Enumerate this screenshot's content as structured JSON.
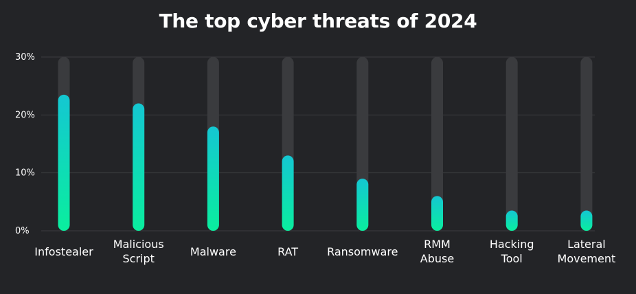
{
  "chart_data": {
    "type": "bar",
    "title": "The top cyber threats of 2024",
    "xlabel": "",
    "ylabel": "",
    "ylim": [
      0,
      30
    ],
    "yticks": [
      0,
      10,
      20,
      30
    ],
    "ytick_labels": [
      "0%",
      "10%",
      "20%",
      "30%"
    ],
    "categories": [
      [
        "Infostealer"
      ],
      [
        "Malicious",
        "Script"
      ],
      [
        "Malware"
      ],
      [
        "RAT"
      ],
      [
        "Ransomware"
      ],
      [
        "RMM",
        "Abuse"
      ],
      [
        "Hacking",
        "Tool"
      ],
      [
        "Lateral",
        "Movement"
      ]
    ],
    "values": [
      23.5,
      22,
      18,
      13,
      9,
      6,
      3.5,
      3.5
    ],
    "grid": true,
    "colors": {
      "background": "#232427",
      "track": "#3a3b3e",
      "gridline": "#3c3d40",
      "bar_top": "#14c7d2",
      "bar_bottom": "#0aee9e"
    }
  }
}
